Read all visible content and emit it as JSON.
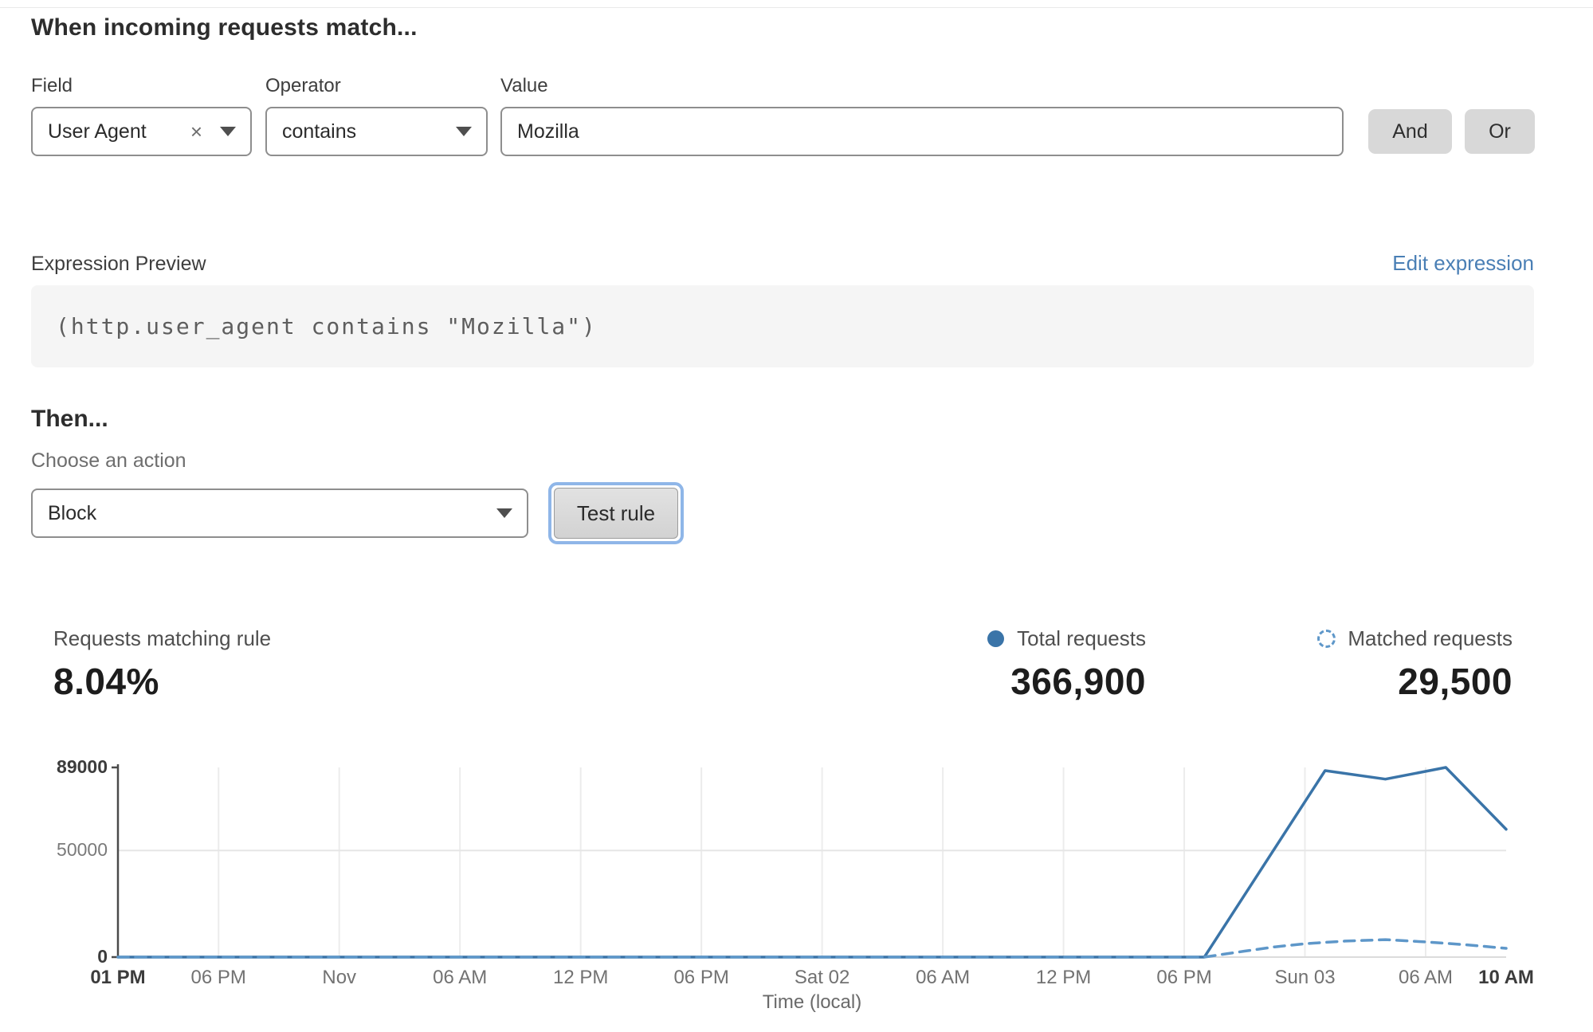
{
  "header": {
    "title": "When incoming requests match..."
  },
  "rule_builder": {
    "field": {
      "label": "Field",
      "value": "User Agent",
      "clear_icon": "×"
    },
    "operator": {
      "label": "Operator",
      "value": "contains"
    },
    "value": {
      "label": "Value",
      "value": "Mozilla"
    },
    "and_label": "And",
    "or_label": "Or"
  },
  "expression": {
    "label": "Expression Preview",
    "edit_link": "Edit expression",
    "code": "(http.user_agent contains \"Mozilla\")"
  },
  "then": {
    "title": "Then...",
    "choose_label": "Choose an action",
    "action_value": "Block",
    "test_button": "Test rule"
  },
  "stats": {
    "matching_label": "Requests matching rule",
    "matching_value": "8.04%",
    "total_label": "Total requests",
    "total_value": "366,900",
    "matched_label": "Matched requests",
    "matched_value": "29,500"
  },
  "colors": {
    "accent_blue": "#3a74a8",
    "light_blue": "#5e97c9",
    "link_blue": "#4a7fb5",
    "button_gray": "#d8d8d8"
  },
  "chart_data": {
    "type": "line",
    "xlabel": "Time (local)",
    "ylabel": "",
    "x_unit": "hours from first tick (01 PM)",
    "xrange": [
      0,
      69
    ],
    "ylim": [
      0,
      89000
    ],
    "grid": "light vertical lines at each time tick, horizontal at 50000",
    "legend_position": "above chart, right side",
    "yticks": [
      {
        "value": 0,
        "label": "0",
        "bold": true
      },
      {
        "value": 50000,
        "label": "50000",
        "bold": false
      },
      {
        "value": 89000,
        "label": "89000",
        "bold": true
      }
    ],
    "xticks": [
      {
        "h": 0,
        "label": "01 PM",
        "bold": true
      },
      {
        "h": 5,
        "label": "06 PM",
        "bold": false
      },
      {
        "h": 11,
        "label": "Nov",
        "bold": false
      },
      {
        "h": 17,
        "label": "06 AM",
        "bold": false
      },
      {
        "h": 23,
        "label": "12 PM",
        "bold": false
      },
      {
        "h": 29,
        "label": "06 PM",
        "bold": false
      },
      {
        "h": 35,
        "label": "Sat 02",
        "bold": false
      },
      {
        "h": 41,
        "label": "06 AM",
        "bold": false
      },
      {
        "h": 47,
        "label": "12 PM",
        "bold": false
      },
      {
        "h": 53,
        "label": "06 PM",
        "bold": false
      },
      {
        "h": 59,
        "label": "Sun 03",
        "bold": false
      },
      {
        "h": 65,
        "label": "06 AM",
        "bold": false
      },
      {
        "h": 69,
        "label": "10 AM",
        "bold": true
      }
    ],
    "series": [
      {
        "name": "Total requests",
        "style": "solid",
        "color": "#3a74a8",
        "points": [
          [
            0,
            0
          ],
          [
            54,
            0
          ],
          [
            60,
            87500
          ],
          [
            63,
            83500
          ],
          [
            66,
            89000
          ],
          [
            69,
            60000
          ]
        ]
      },
      {
        "name": "Matched requests",
        "style": "dashed",
        "color": "#5e97c9",
        "points": [
          [
            0,
            0
          ],
          [
            54,
            0
          ],
          [
            56,
            2800
          ],
          [
            57.5,
            4800
          ],
          [
            59,
            6300
          ],
          [
            61,
            7500
          ],
          [
            63,
            8200
          ],
          [
            65,
            7100
          ],
          [
            67,
            5800
          ],
          [
            69,
            4100
          ]
        ]
      }
    ]
  }
}
